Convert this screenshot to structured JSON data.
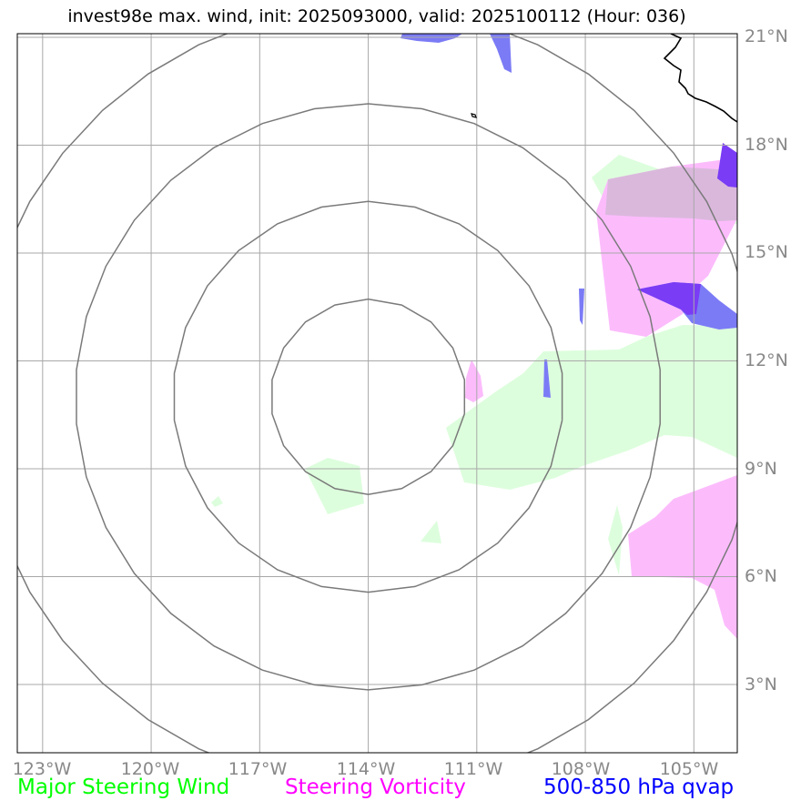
{
  "title": "invest98e max. wind, init: 2025093000, valid: 2025100112 (Hour: 036)",
  "axes": {
    "lon_ticks": [
      "123°W",
      "120°W",
      "117°W",
      "114°W",
      "111°W",
      "108°W",
      "105°W"
    ],
    "lat_ticks": [
      "21°N",
      "18°N",
      "15°N",
      "12°N",
      "9°N",
      "6°N",
      "3°N"
    ]
  },
  "map": {
    "lon_range": [
      -123.7,
      -103.8
    ],
    "lat_range": [
      1.1,
      21.1
    ],
    "storm_center": {
      "lon": -114.0,
      "lat": 11.0
    },
    "range_rings_deg": [
      2.7,
      5.4,
      8.1,
      10.8
    ]
  },
  "legend": [
    {
      "label": "Major Steering Wind",
      "color": "#00ff00"
    },
    {
      "label": "Steering Vorticity",
      "color": "#ff00ff"
    },
    {
      "label": "500-850 hPa qvap",
      "color": "#0000ff"
    }
  ],
  "colors": {
    "wind_fill": "#ddfedd",
    "vorticity_fill": "#fcbcfc",
    "qvap_fill": "#7b7bf6",
    "overlap_fill": "#dab8dc",
    "overlap_dark": "#7a3cf5",
    "grid": "#a8a8a8",
    "ring": "#7a7a7a",
    "coast": "#000000"
  }
}
